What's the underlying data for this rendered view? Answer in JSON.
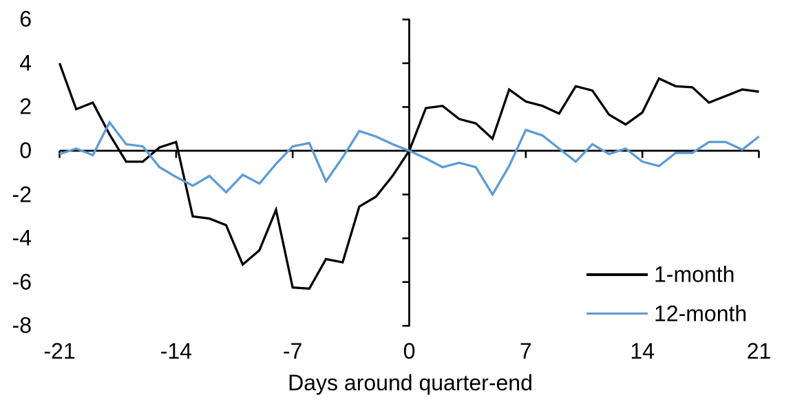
{
  "page": {
    "background": "#ffffff",
    "text_color": "#000000"
  },
  "chart_data": {
    "type": "line",
    "title": "",
    "xlabel": "Days around quarter-end",
    "ylabel": "",
    "xlim": [
      -21,
      21
    ],
    "ylim": [
      -8,
      6
    ],
    "x_ticks": [
      -21,
      -14,
      -7,
      0,
      7,
      14,
      21
    ],
    "y_ticks": [
      6,
      4,
      2,
      0,
      -2,
      -4,
      -6,
      -8
    ],
    "grid": false,
    "legend_position": "inside-lower-right",
    "axis_color": "#000000",
    "x": [
      -21,
      -20,
      -19,
      -18,
      -17,
      -16,
      -15,
      -14,
      -13,
      -12,
      -11,
      -10,
      -9,
      -8,
      -7,
      -6,
      -5,
      -4,
      -3,
      -2,
      -1,
      0,
      1,
      2,
      3,
      4,
      5,
      6,
      7,
      8,
      9,
      10,
      11,
      12,
      13,
      14,
      15,
      16,
      17,
      18,
      19,
      20,
      21
    ],
    "series": [
      {
        "name": "1-month",
        "color": "#000000",
        "values": [
          4.0,
          1.9,
          2.2,
          0.75,
          -0.5,
          -0.5,
          0.15,
          0.4,
          -3.0,
          -3.1,
          -3.4,
          -5.2,
          -4.55,
          -2.7,
          -6.25,
          -6.3,
          -4.95,
          -5.1,
          -2.55,
          -2.1,
          -1.15,
          0.0,
          1.95,
          2.05,
          1.45,
          1.25,
          0.55,
          2.8,
          2.25,
          2.05,
          1.7,
          2.95,
          2.75,
          1.65,
          1.2,
          1.75,
          3.3,
          2.95,
          2.9,
          2.2,
          2.5,
          2.8,
          2.7
        ]
      },
      {
        "name": "12-month",
        "color": "#5B9BD5",
        "values": [
          -0.15,
          0.1,
          -0.2,
          1.3,
          0.3,
          0.2,
          -0.75,
          -1.2,
          -1.6,
          -1.15,
          -1.9,
          -1.1,
          -1.5,
          -0.6,
          0.2,
          0.35,
          -1.4,
          -0.3,
          0.9,
          0.65,
          0.3,
          0.0,
          -0.35,
          -0.75,
          -0.55,
          -0.75,
          -2.0,
          -0.7,
          0.95,
          0.7,
          0.1,
          -0.5,
          0.3,
          -0.15,
          0.1,
          -0.5,
          -0.7,
          -0.1,
          -0.1,
          0.4,
          0.4,
          0.05,
          0.65
        ]
      }
    ]
  }
}
